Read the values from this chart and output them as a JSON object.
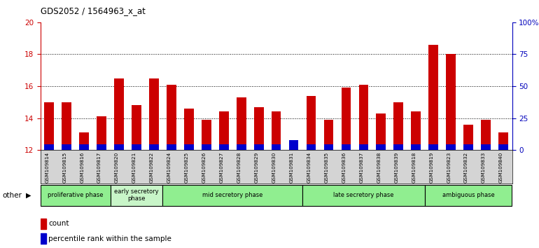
{
  "title": "GDS2052 / 1564963_x_at",
  "samples": [
    "GSM109814",
    "GSM109815",
    "GSM109816",
    "GSM109817",
    "GSM109820",
    "GSM109821",
    "GSM109822",
    "GSM109824",
    "GSM109825",
    "GSM109826",
    "GSM109827",
    "GSM109828",
    "GSM109829",
    "GSM109830",
    "GSM109831",
    "GSM109834",
    "GSM109835",
    "GSM109836",
    "GSM109837",
    "GSM109838",
    "GSM109839",
    "GSM109818",
    "GSM109819",
    "GSM109823",
    "GSM109832",
    "GSM109833",
    "GSM109840"
  ],
  "red_values": [
    15.0,
    15.0,
    13.1,
    14.1,
    16.5,
    14.8,
    16.5,
    16.1,
    14.6,
    13.9,
    14.4,
    15.3,
    14.7,
    14.4,
    12.4,
    15.4,
    13.9,
    15.9,
    16.1,
    14.3,
    15.0,
    14.4,
    18.6,
    18.0,
    13.6,
    13.9,
    13.1
  ],
  "blue_values": [
    0.35,
    0.35,
    0.35,
    0.35,
    0.35,
    0.35,
    0.35,
    0.35,
    0.35,
    0.35,
    0.35,
    0.35,
    0.35,
    0.35,
    0.6,
    0.35,
    0.35,
    0.35,
    0.35,
    0.35,
    0.35,
    0.35,
    0.35,
    0.35,
    0.35,
    0.35,
    0.35
  ],
  "ymin": 12,
  "ymax": 20,
  "yticks_left": [
    12,
    14,
    16,
    18,
    20
  ],
  "yticks_right": [
    0,
    25,
    50,
    75,
    100
  ],
  "ytick_labels_right": [
    "0",
    "25",
    "50",
    "75",
    "100%"
  ],
  "phases": [
    {
      "label": "proliferative phase",
      "start": 0,
      "end": 3,
      "color": "#90EE90"
    },
    {
      "label": "early secretory\nphase",
      "start": 4,
      "end": 6,
      "color": "#c8f5c8"
    },
    {
      "label": "mid secretory phase",
      "start": 7,
      "end": 14,
      "color": "#90EE90"
    },
    {
      "label": "late secretory phase",
      "start": 15,
      "end": 21,
      "color": "#90EE90"
    },
    {
      "label": "ambiguous phase",
      "start": 22,
      "end": 26,
      "color": "#90EE90"
    }
  ],
  "bar_width": 0.55,
  "red_color": "#CC0000",
  "blue_color": "#0000CC",
  "bg_color": "#d4d4d4",
  "plot_bg": "#ffffff",
  "left_tick_color": "#CC0000",
  "right_tick_color": "#0000BB"
}
